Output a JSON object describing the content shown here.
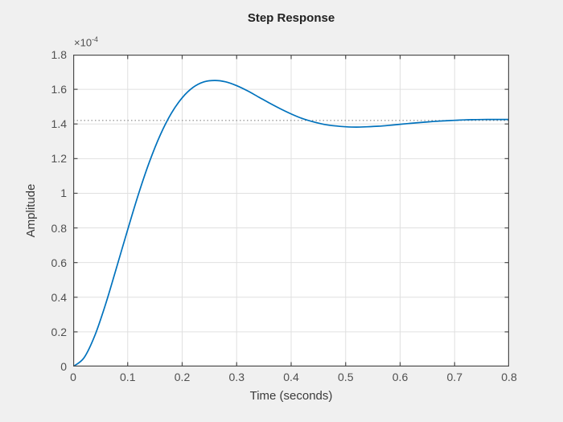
{
  "window": {
    "background_color": "#f0f0f0"
  },
  "styles": {
    "plot_background": "#ffffff",
    "axis_color": "#4d4d4d",
    "grid_color": "#e0e0e0",
    "title_color": "#212121",
    "tick_label_color": "#4f4f4f"
  },
  "chart_data": {
    "type": "line",
    "title": "Step Response",
    "xlabel": "Time (seconds)",
    "ylabel": "Amplitude",
    "y_exponent": {
      "base": "×10",
      "power": "-4"
    },
    "grid": true,
    "legend": "none",
    "xlim": [
      0,
      0.8
    ],
    "ylim_displayed": [
      0,
      1.8
    ],
    "y_unit_multiplier": 0.0001,
    "x_ticks": [
      0,
      0.1,
      0.2,
      0.3,
      0.4,
      0.5,
      0.6,
      0.7,
      0.8
    ],
    "x_tick_labels": [
      "0",
      "0.1",
      "0.2",
      "0.3",
      "0.4",
      "0.5",
      "0.6",
      "0.7",
      "0.8"
    ],
    "y_ticks": [
      0,
      0.2,
      0.4,
      0.6,
      0.8,
      1,
      1.2,
      1.4,
      1.6,
      1.8
    ],
    "y_tick_labels": [
      "0",
      "0.2",
      "0.4",
      "0.6",
      "0.8",
      "1",
      "1.2",
      "1.4",
      "1.6",
      "1.8"
    ],
    "steady_state_line": {
      "value_displayed": 1.42,
      "style": "dotted",
      "color": "#777777"
    },
    "key_points": {
      "peak_time": 0.26,
      "peak_value_displayed": 1.65,
      "undershoot_time": 0.52,
      "undershoot_value_displayed": 1.38,
      "final_value_displayed": 1.42
    },
    "series": [
      {
        "name": "step-response",
        "color": "#0072bd",
        "line_width": 1.7,
        "x": [
          0,
          0.02,
          0.04,
          0.06,
          0.08,
          0.1,
          0.12,
          0.14,
          0.16,
          0.18,
          0.2,
          0.22,
          0.24,
          0.26,
          0.28,
          0.3,
          0.32,
          0.34,
          0.36,
          0.38,
          0.4,
          0.42,
          0.44,
          0.46,
          0.48,
          0.5,
          0.52,
          0.54,
          0.56,
          0.58,
          0.6,
          0.62,
          0.64,
          0.66,
          0.68,
          0.7,
          0.72,
          0.74,
          0.76,
          0.78,
          0.8
        ],
        "y": [
          0,
          0.051,
          0.181,
          0.365,
          0.576,
          0.79,
          0.997,
          1.182,
          1.338,
          1.461,
          1.551,
          1.611,
          1.643,
          1.651,
          1.643,
          1.621,
          1.591,
          1.556,
          1.521,
          1.488,
          1.458,
          1.432,
          1.413,
          1.398,
          1.389,
          1.384,
          1.382,
          1.384,
          1.387,
          1.392,
          1.398,
          1.404,
          1.409,
          1.414,
          1.418,
          1.421,
          1.424,
          1.425,
          1.426,
          1.426,
          1.426
        ]
      }
    ]
  }
}
